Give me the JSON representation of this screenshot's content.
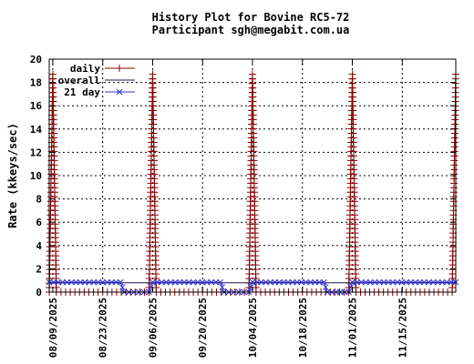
{
  "chart_data": {
    "type": "line",
    "title": "History Plot for Bovine RC5-72",
    "subtitle": "Participant sgh@megabit.com.ua",
    "ylabel": "Rate (kkeys/sec)",
    "xlabel": "",
    "x_start": "08/08/2025",
    "x_end": "11/30/2025",
    "ylim": [
      0,
      20
    ],
    "y_ticks": [
      0,
      2,
      4,
      6,
      8,
      10,
      12,
      14,
      16,
      18,
      20
    ],
    "x_ticks": [
      "08/09/2025",
      "08/23/2025",
      "09/06/2025",
      "09/20/2025",
      "10/04/2025",
      "10/18/2025",
      "11/01/2025",
      "11/15/2025"
    ],
    "grid": true,
    "legend_position": "top-left",
    "series": [
      {
        "name": "daily",
        "color": "#8b0000",
        "marker": "plus",
        "points": [
          [
            "08/08/2025",
            0
          ],
          [
            "08/09/2025",
            18.7
          ],
          [
            "08/10/2025",
            0
          ],
          [
            "09/05/2025",
            0
          ],
          [
            "09/06/2025",
            18.7
          ],
          [
            "09/07/2025",
            0
          ],
          [
            "10/03/2025",
            0
          ],
          [
            "10/04/2025",
            18.7
          ],
          [
            "10/05/2025",
            0
          ],
          [
            "10/31/2025",
            0
          ],
          [
            "11/01/2025",
            18.7
          ],
          [
            "11/02/2025",
            0
          ],
          [
            "11/29/2025",
            0
          ],
          [
            "11/30/2025",
            18.7
          ]
        ]
      },
      {
        "name": "overall",
        "color": "#1a1a4d",
        "marker": "none",
        "points": [
          [
            "08/08/2025",
            0.8
          ],
          [
            "11/30/2025",
            0.8
          ]
        ]
      },
      {
        "name": "21 day",
        "color": "#3333cc",
        "marker": "x",
        "points": [
          [
            "08/08/2025",
            0.85
          ],
          [
            "08/28/2025",
            0.85
          ],
          [
            "08/29/2025",
            0
          ],
          [
            "09/05/2025",
            0
          ],
          [
            "09/06/2025",
            0.85
          ],
          [
            "09/25/2025",
            0.85
          ],
          [
            "09/26/2025",
            0
          ],
          [
            "10/03/2025",
            0
          ],
          [
            "10/04/2025",
            0.85
          ],
          [
            "10/24/2025",
            0.85
          ],
          [
            "10/25/2025",
            0
          ],
          [
            "10/31/2025",
            0
          ],
          [
            "11/01/2025",
            0.85
          ],
          [
            "11/30/2025",
            0.85
          ]
        ]
      }
    ]
  }
}
